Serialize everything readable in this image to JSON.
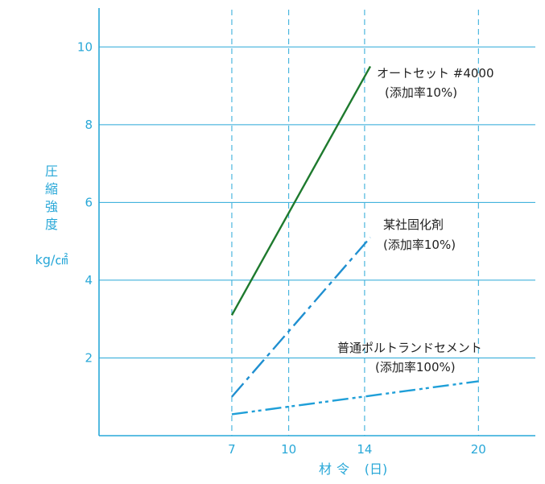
{
  "chart_data": {
    "type": "line",
    "ylabel_chars": [
      "圧",
      "縮",
      "強",
      "度"
    ],
    "yunit": "kg/㎠",
    "xlabel_parts": [
      "材",
      "令",
      "(日)"
    ],
    "xlim": [
      0,
      23
    ],
    "ylim": [
      0,
      11
    ],
    "xticks": [
      7,
      10,
      14,
      20
    ],
    "yticks": [
      2,
      4,
      6,
      8,
      10
    ],
    "grid": true,
    "series": [
      {
        "name": "オートセット #4000",
        "note": "(添加率10%)",
        "color": "#1e7a2e",
        "style": "solid",
        "x": [
          7,
          14.3
        ],
        "y": [
          3.1,
          9.5
        ]
      },
      {
        "name": "某社固化剤",
        "note": "(添加率10%)",
        "color": "#1f8fd0",
        "style": "dashdot",
        "x": [
          7,
          14.3
        ],
        "y": [
          1.0,
          5.1
        ]
      },
      {
        "name": "普通ポルトランドセメント",
        "note": "(添加率100%)",
        "color": "#1f9fd8",
        "style": "dashdotdot",
        "x": [
          7,
          20
        ],
        "y": [
          0.55,
          1.4
        ]
      }
    ]
  }
}
